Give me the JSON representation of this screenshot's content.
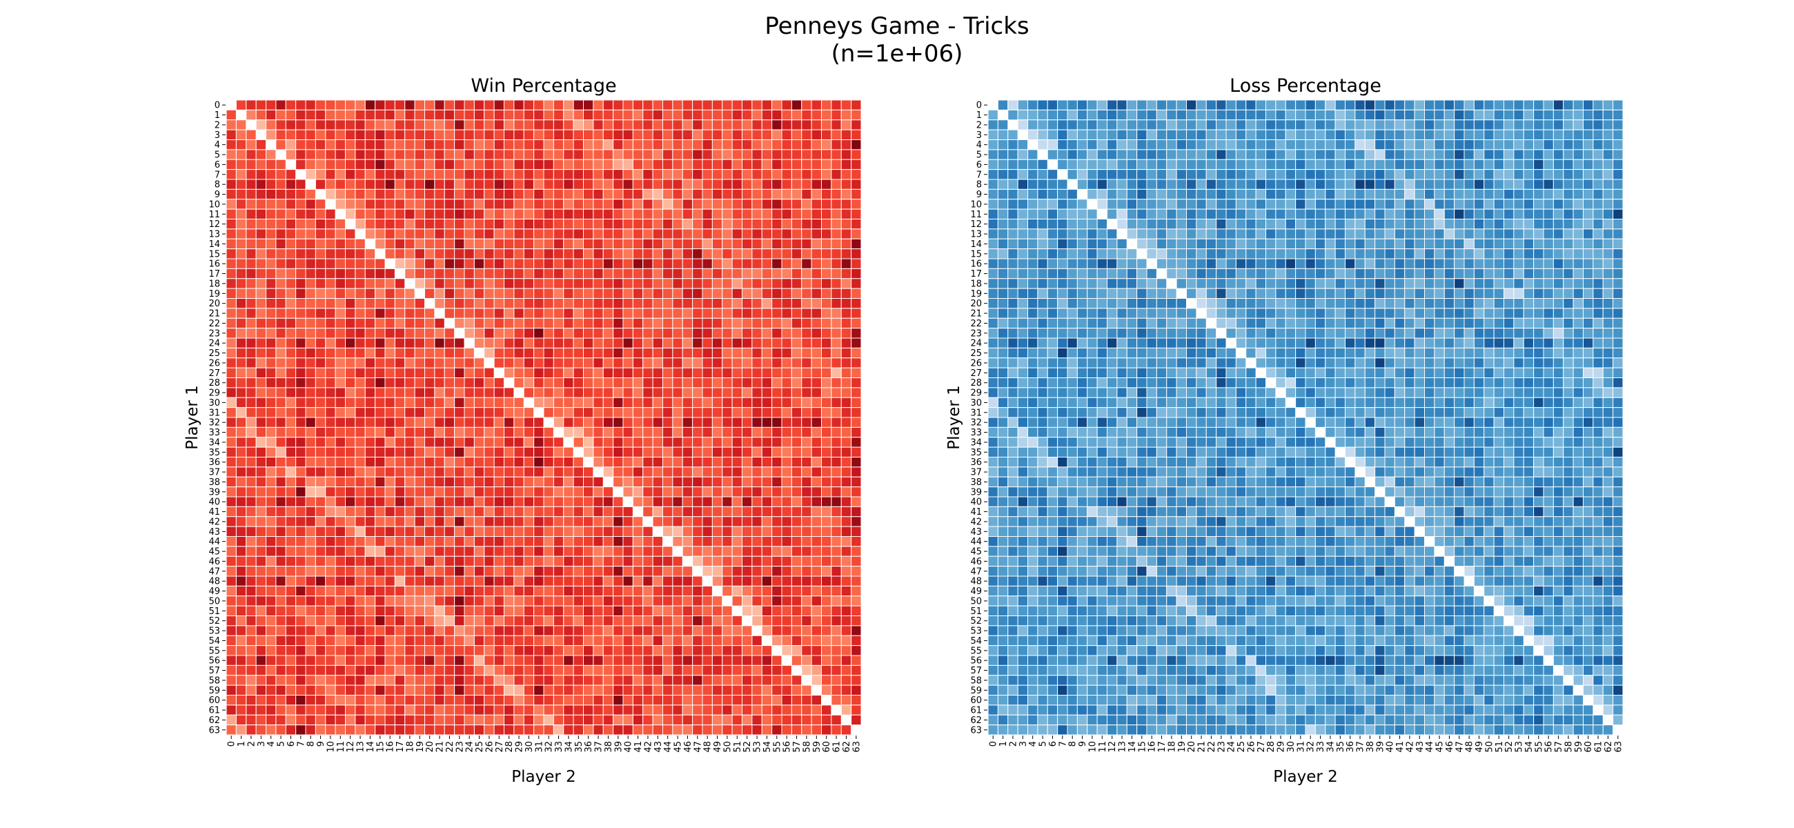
{
  "figure": {
    "title_line1": "Penneys Game - Tricks",
    "title_line2": "(n=1e+06)"
  },
  "chart_data": [
    {
      "type": "heatmap",
      "title": "Win Percentage",
      "xlabel": "Player 2",
      "ylabel": "Player 1",
      "categories": [
        "0",
        "1",
        "2",
        "3",
        "4",
        "5",
        "6",
        "7",
        "8",
        "9",
        "10",
        "11",
        "12",
        "13",
        "14",
        "15",
        "16",
        "17",
        "18",
        "19",
        "20",
        "21",
        "22",
        "23",
        "24",
        "25",
        "26",
        "27",
        "28",
        "29",
        "30",
        "31",
        "32",
        "33",
        "34",
        "35",
        "36",
        "37",
        "38",
        "39",
        "40",
        "41",
        "42",
        "43",
        "44",
        "45",
        "46",
        "47",
        "48",
        "49",
        "50",
        "51",
        "52",
        "53",
        "54",
        "55",
        "56",
        "57",
        "58",
        "59",
        "60",
        "61",
        "62",
        "63"
      ],
      "grid": true,
      "diagonal": "blank",
      "color": "#e03a2e",
      "colormap": "Reds"
    },
    {
      "type": "heatmap",
      "title": "Loss Percentage",
      "xlabel": "Player 2",
      "ylabel": "Player 1",
      "categories": [
        "0",
        "1",
        "2",
        "3",
        "4",
        "5",
        "6",
        "7",
        "8",
        "9",
        "10",
        "11",
        "12",
        "13",
        "14",
        "15",
        "16",
        "17",
        "18",
        "19",
        "20",
        "21",
        "22",
        "23",
        "24",
        "25",
        "26",
        "27",
        "28",
        "29",
        "30",
        "31",
        "32",
        "33",
        "34",
        "35",
        "36",
        "37",
        "38",
        "39",
        "40",
        "41",
        "42",
        "43",
        "44",
        "45",
        "46",
        "47",
        "48",
        "49",
        "50",
        "51",
        "52",
        "53",
        "54",
        "55",
        "56",
        "57",
        "58",
        "59",
        "60",
        "61",
        "62",
        "63"
      ],
      "grid": true,
      "diagonal": "blank",
      "color": "#3a7fbf",
      "colormap": "Blues"
    }
  ]
}
